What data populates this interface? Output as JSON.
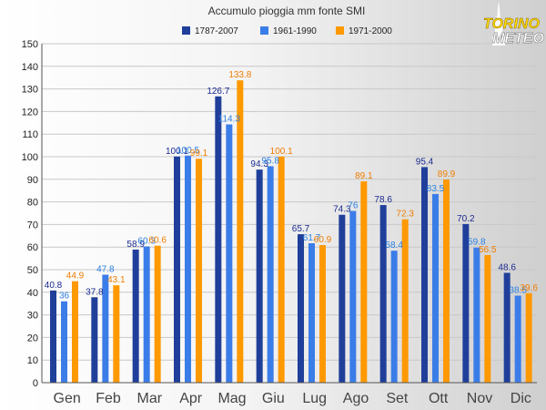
{
  "chart_data": {
    "type": "bar",
    "title": "Accumulo pioggia mm fonte SMI",
    "categories": [
      "Gen",
      "Feb",
      "Mar",
      "Apr",
      "Mag",
      "Giu",
      "Lug",
      "Ago",
      "Set",
      "Ott",
      "Nov",
      "Dic"
    ],
    "series": [
      {
        "name": "1787-2007",
        "color": "#1f3f9a",
        "values": [
          40.8,
          37.8,
          58.9,
          100.1,
          126.7,
          94.3,
          65.7,
          74.3,
          78.6,
          95.4,
          70.2,
          48.6
        ]
      },
      {
        "name": "1961-1990",
        "color": "#3b7de8",
        "values": [
          36,
          47.8,
          60.3,
          100.5,
          114.3,
          95.8,
          61.7,
          76,
          58.4,
          83.5,
          59.8,
          38.5
        ]
      },
      {
        "name": "1971-2000",
        "color": "#ff9900",
        "values": [
          44.9,
          43.1,
          60.6,
          99.1,
          133.8,
          100.1,
          60.9,
          89.1,
          72.3,
          89.9,
          56.5,
          39.6
        ]
      }
    ],
    "label_colors": [
      "#1a2a90",
      "#2a80e0",
      "#f07d00"
    ],
    "ylim": [
      0,
      150
    ],
    "yticks": [
      0,
      10,
      20,
      30,
      40,
      50,
      60,
      70,
      80,
      90,
      100,
      110,
      120,
      130,
      140,
      150
    ],
    "grid": true,
    "legend_position": "top-center"
  },
  "logo": {
    "line1": "TORINO",
    "line2": "METEO"
  }
}
